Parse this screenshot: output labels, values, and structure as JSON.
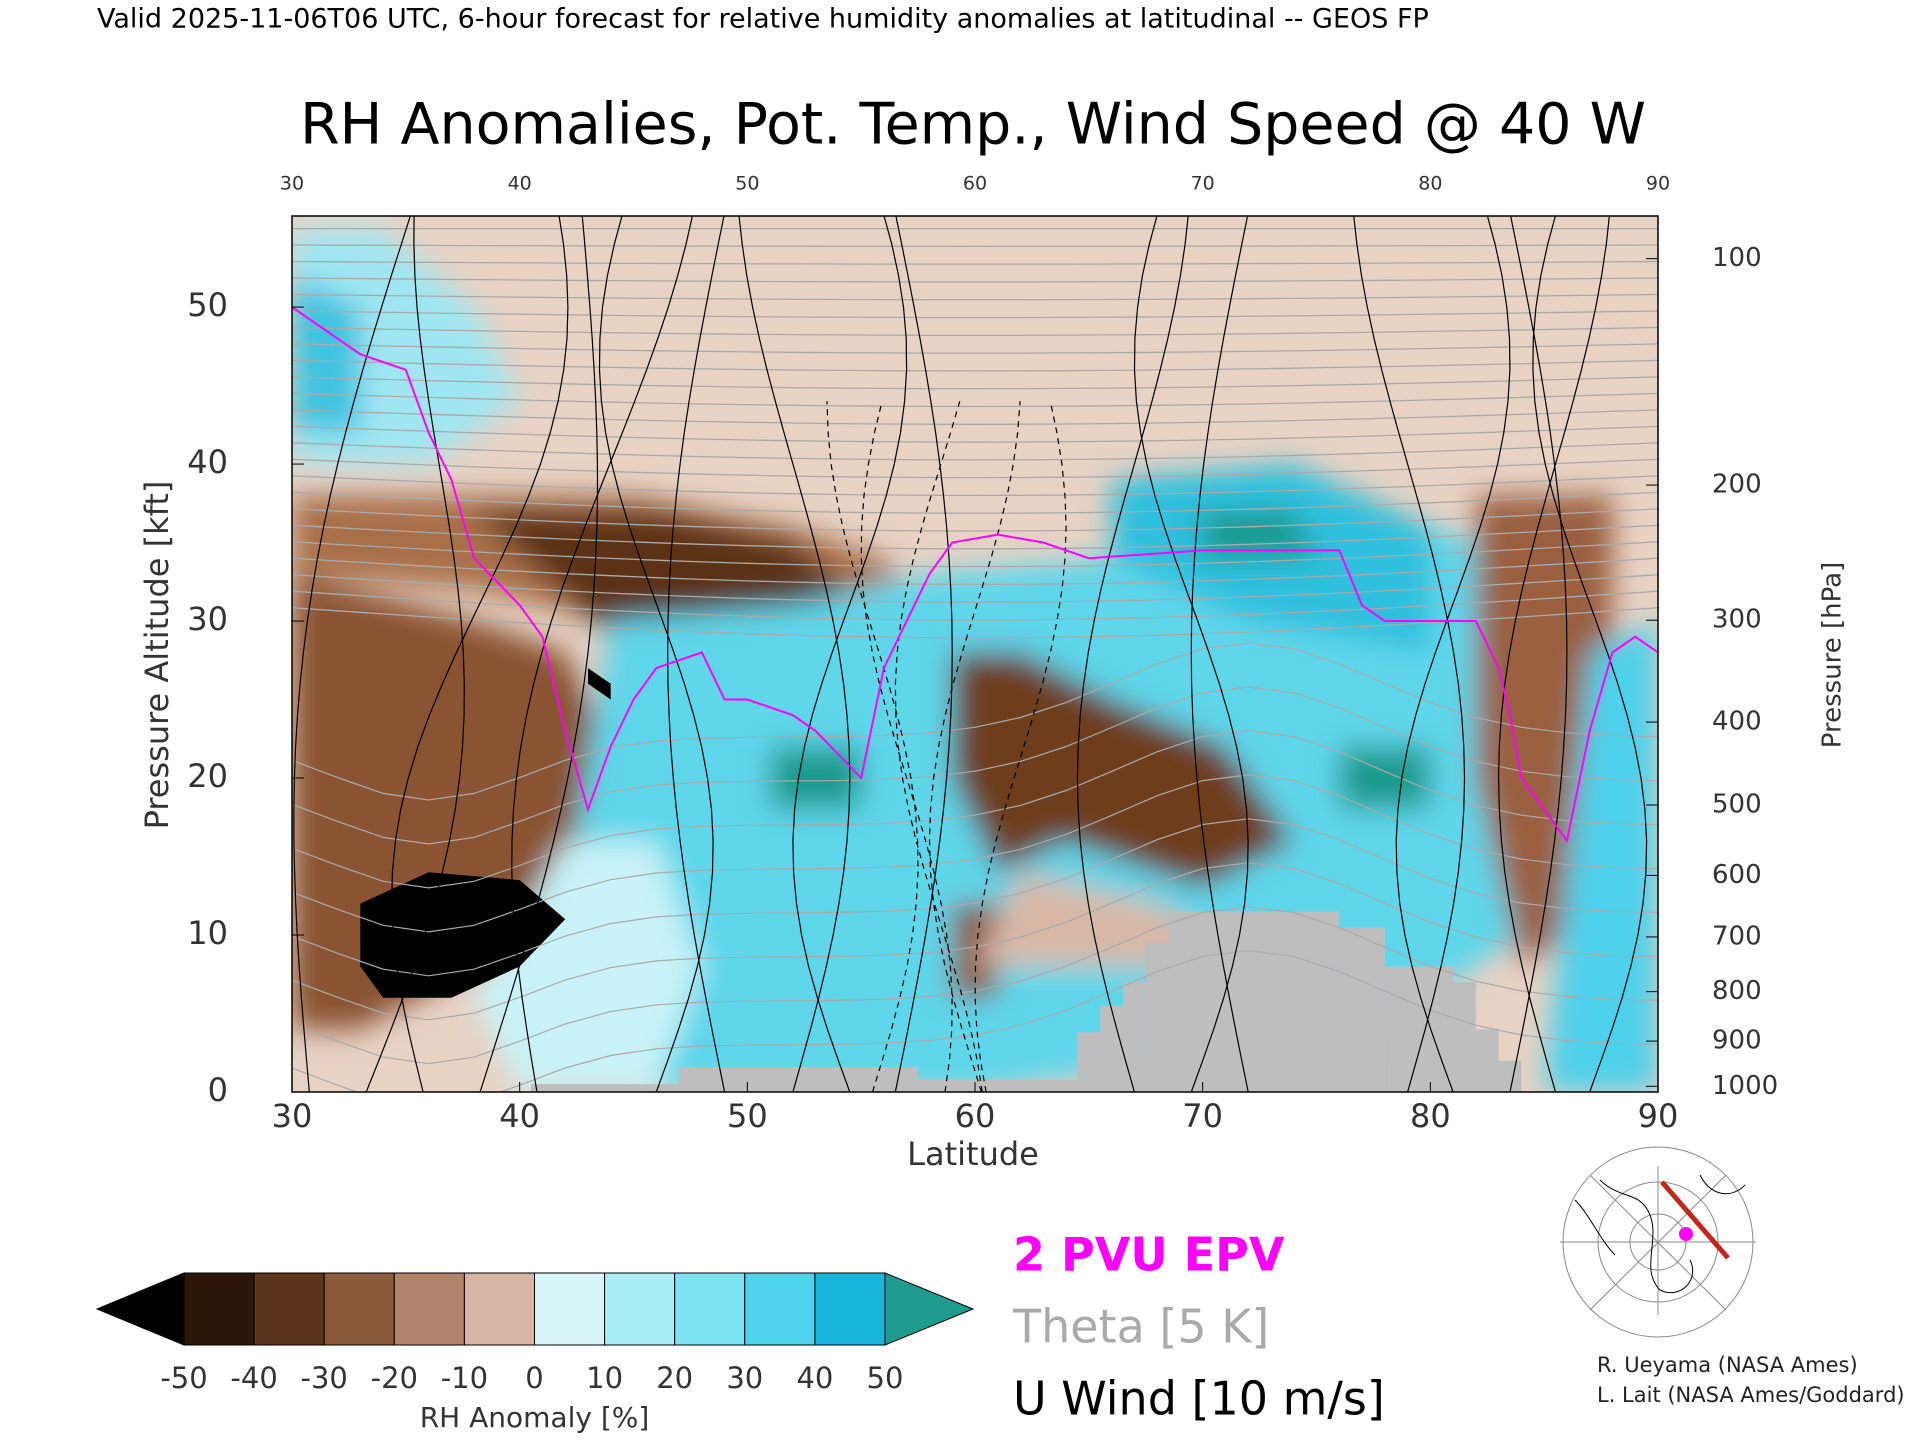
{
  "chart_data": {
    "type": "contour",
    "header": "Valid 2025-11-06T06 UTC, 6-hour forecast for relative humidity anomalies at latitudinal -- GEOS FP",
    "title": "RH Anomalies, Pot. Temp., Wind Speed @ 40 W",
    "xlabel": "Latitude",
    "ylabel": "Pressure Altitude [kft]",
    "y2label": "Pressure [hPa]",
    "xlim": [
      30,
      90
    ],
    "xticks": [
      30,
      40,
      50,
      60,
      70,
      80,
      90
    ],
    "ylim": [
      0,
      55.8
    ],
    "yticks": [
      0,
      10,
      20,
      30,
      40,
      50
    ],
    "y2scale": "pressure-altitude",
    "y2ticks": [
      100,
      200,
      300,
      400,
      500,
      600,
      700,
      800,
      900,
      1000
    ],
    "colorbar": {
      "label": "RH Anomaly [%]",
      "ticks": [
        -50,
        -40,
        -30,
        -20,
        -10,
        0,
        10,
        20,
        30,
        40,
        50
      ],
      "colors": [
        "#2e1708",
        "#5c351c",
        "#8a5a3b",
        "#b0836a",
        "#d8b6a5",
        "#d8f6f9",
        "#a9edf6",
        "#7de3f3",
        "#4dd3ec",
        "#17b5da"
      ],
      "under": "#000000",
      "over": "#1f9a8e"
    },
    "legend": [
      {
        "name": "2 PVU EPV",
        "color": "#ff00ff"
      },
      {
        "name": "Theta [5 K]",
        "color": "#aaaaaa"
      },
      {
        "name": "U Wind [10 m/s]",
        "color": "#000000"
      }
    ],
    "credits": [
      "R. Ueyama (NASA Ames)",
      "L. Lait (NASA Ames/Goddard)"
    ]
  }
}
